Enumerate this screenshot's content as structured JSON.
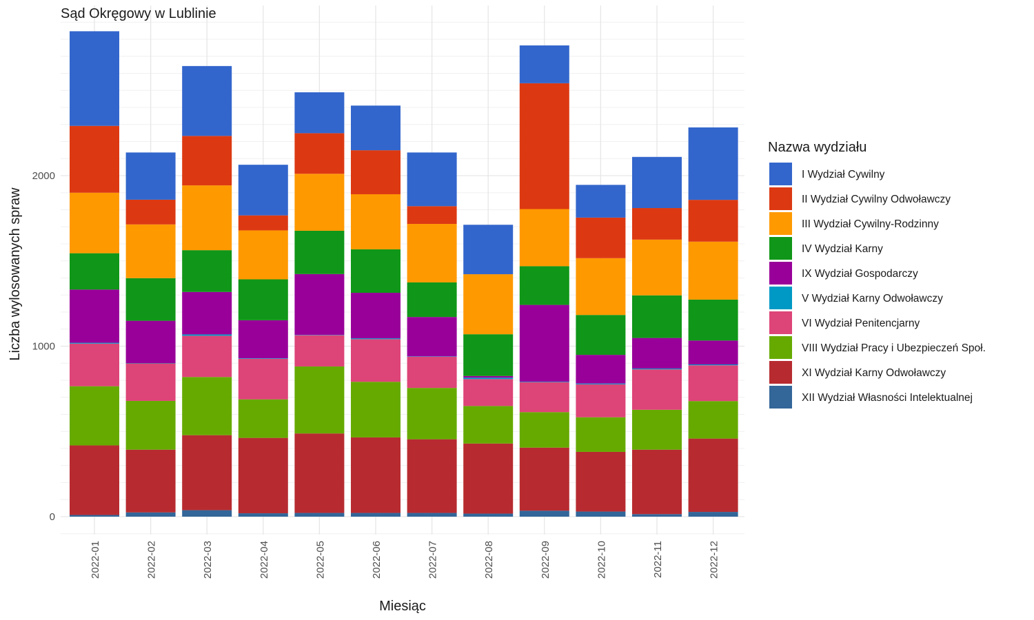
{
  "chart_data": {
    "type": "bar",
    "stacked": true,
    "title": "Sąd Okręgowy w Lublinie",
    "xlabel": "Miesiąc",
    "ylabel": "Liczba wylosowanych spraw",
    "ylim": [
      0,
      2900
    ],
    "yticks": [
      0,
      1000,
      2000
    ],
    "grid": true,
    "legend_title": "Nazwa wydziału",
    "legend_position": "right",
    "categories": [
      "2022-01",
      "2022-02",
      "2022-03",
      "2022-04",
      "2022-05",
      "2022-06",
      "2022-07",
      "2022-08",
      "2022-09",
      "2022-10",
      "2022-11",
      "2022-12"
    ],
    "series": [
      {
        "name": "XII Wydział Własności Intelektualnej",
        "color": "#336699",
        "values": [
          10,
          25,
          38,
          20,
          22,
          22,
          22,
          18,
          35,
          30,
          15,
          28
        ]
      },
      {
        "name": "XI Wydział Karny Odwoławczy",
        "color": "#B72B30",
        "values": [
          408,
          368,
          440,
          442,
          466,
          443,
          432,
          411,
          370,
          350,
          378,
          430
        ]
      },
      {
        "name": "VIII Wydział Pracy i Ubezpieczeń Społ.",
        "color": "#66AA00",
        "values": [
          347,
          286,
          341,
          226,
          393,
          326,
          301,
          220,
          208,
          203,
          234,
          220
        ]
      },
      {
        "name": "VI Wydział Penitencjarny",
        "color": "#DD4477",
        "values": [
          250,
          220,
          242,
          238,
          183,
          250,
          183,
          158,
          176,
          193,
          237,
          210
        ]
      },
      {
        "name": "V Wydział Karny Odwoławczy",
        "color": "#0099C6",
        "values": [
          5,
          2,
          8,
          3,
          2,
          5,
          2,
          8,
          3,
          5,
          5,
          5
        ]
      },
      {
        "name": "IX Wydział Gospodarczy",
        "color": "#990099",
        "values": [
          312,
          248,
          249,
          223,
          357,
          267,
          231,
          10,
          450,
          168,
          179,
          140
        ]
      },
      {
        "name": "IV Wydział Karny",
        "color": "#109618",
        "values": [
          213,
          250,
          245,
          240,
          254,
          255,
          203,
          245,
          227,
          234,
          250,
          240
        ]
      },
      {
        "name": "III Wydział Cywilny-Rodzinny",
        "color": "#FF9900",
        "values": [
          355,
          315,
          380,
          287,
          334,
          323,
          343,
          352,
          335,
          333,
          327,
          340
        ]
      },
      {
        "name": "II Wydział Cywilny Odwoławczy",
        "color": "#DC3912",
        "values": [
          392,
          145,
          290,
          88,
          238,
          258,
          104,
          0,
          738,
          238,
          185,
          245
        ]
      },
      {
        "name": "I Wydział Cywilny",
        "color": "#3366CC",
        "values": [
          555,
          277,
          410,
          297,
          240,
          262,
          315,
          290,
          222,
          192,
          300,
          425
        ]
      }
    ]
  }
}
